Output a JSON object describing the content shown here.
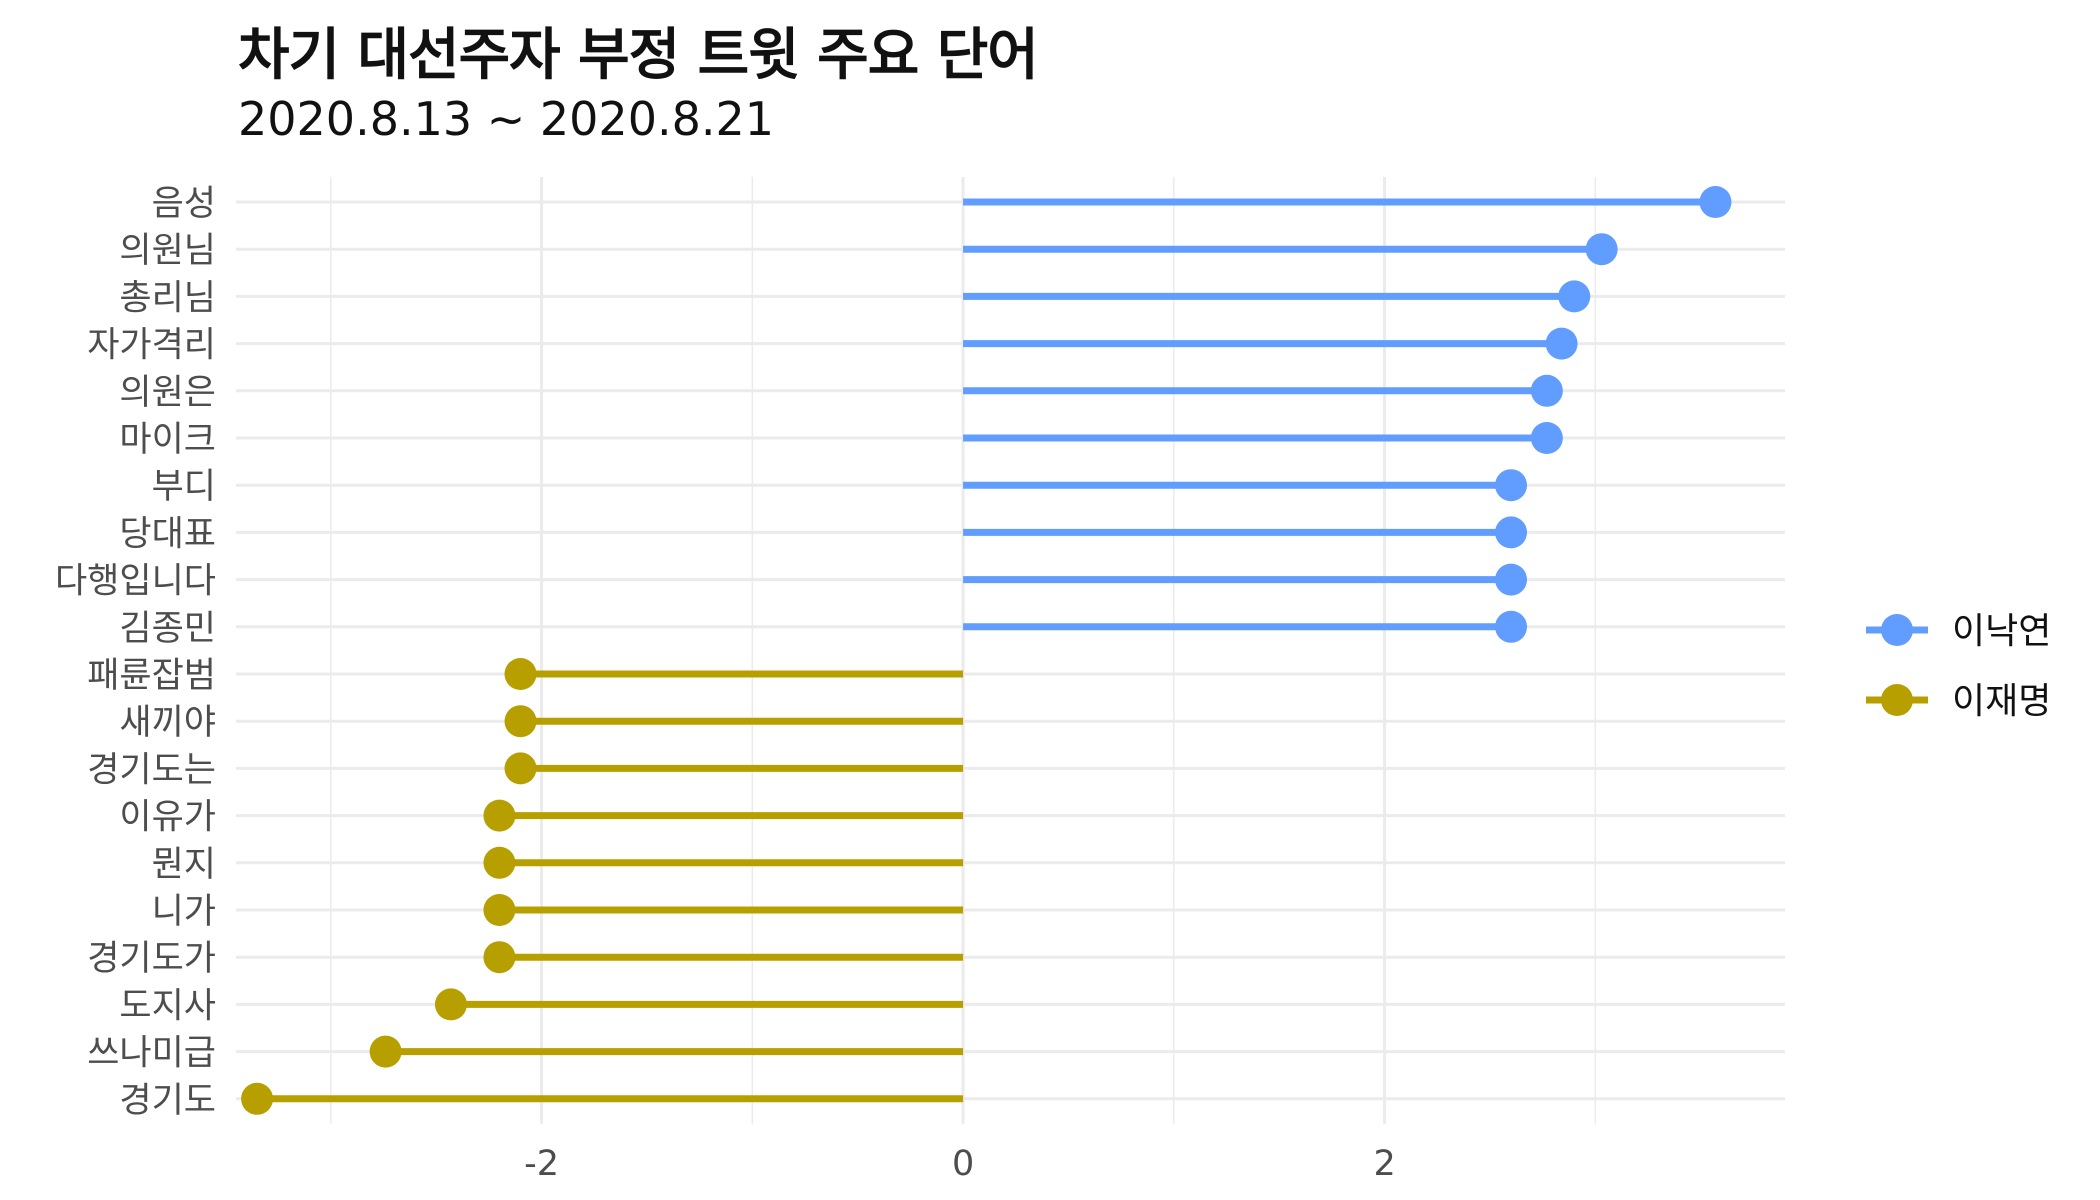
{
  "title": "차기 대선주자 부정 트윗 주요 단어",
  "subtitle": "2020.8.13 ~ 2020.8.21",
  "colors": {
    "이낙연": "#619CFF",
    "이재명": "#B79F00",
    "grid": "#ebebeb"
  },
  "chart_data": {
    "type": "lollipop",
    "title": "차기 대선주자 부정 트윗 주요 단어",
    "subtitle": "2020.8.13 ~ 2020.8.21",
    "xlabel": "",
    "ylabel": "",
    "xlim": [
      -3.45,
      3.9
    ],
    "x_ticks": [
      -2,
      0,
      2
    ],
    "x_tick_labels": [
      "-2",
      "0",
      "2"
    ],
    "grid": true,
    "legend_position": "right",
    "series_names": [
      "이낙연",
      "이재명"
    ],
    "categories": [
      "음성",
      "의원님",
      "총리님",
      "자가격리",
      "의원은",
      "마이크",
      "부디",
      "당대표",
      "다행입니다",
      "김종민",
      "패륜잡범",
      "새끼야",
      "경기도는",
      "이유가",
      "뭔지",
      "니가",
      "경기도가",
      "도지사",
      "쓰나미급",
      "경기도"
    ],
    "values": [
      3.57,
      3.03,
      2.9,
      2.84,
      2.77,
      2.77,
      2.6,
      2.6,
      2.6,
      2.6,
      -2.1,
      -2.1,
      -2.1,
      -2.2,
      -2.2,
      -2.2,
      -2.2,
      -2.43,
      -2.74,
      -3.35
    ],
    "groups": [
      "이낙연",
      "이낙연",
      "이낙연",
      "이낙연",
      "이낙연",
      "이낙연",
      "이낙연",
      "이낙연",
      "이낙연",
      "이낙연",
      "이재명",
      "이재명",
      "이재명",
      "이재명",
      "이재명",
      "이재명",
      "이재명",
      "이재명",
      "이재명",
      "이재명"
    ]
  }
}
